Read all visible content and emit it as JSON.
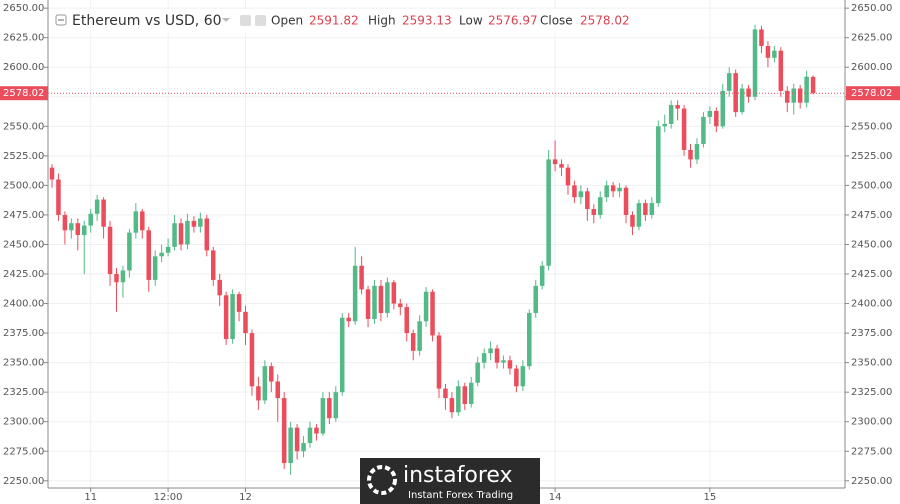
{
  "chart_data": {
    "type": "candlestick",
    "title": "Ethereum vs USD, 60",
    "ohlc_labels": {
      "open": "Open",
      "high": "High",
      "low": "Low",
      "close": "Close"
    },
    "watermark": {
      "brand": "instaforex",
      "tagline": "Instant Forex Trading"
    },
    "up_color": "#53b987",
    "down_color": "#eb4d5c",
    "grid": true,
    "xlim": [
      -0.62,
      122.95
    ],
    "xticks": [
      {
        "value": 6,
        "label": "11"
      },
      {
        "value": 18,
        "label": "12:00"
      },
      {
        "value": 30,
        "label": "12"
      },
      {
        "value": 78,
        "label": "14"
      },
      {
        "value": 102,
        "label": "15"
      }
    ],
    "ylim": [
      2243.9,
      2656.9
    ],
    "yticks": [
      {
        "value": 2250,
        "label": "2250.00"
      },
      {
        "value": 2275,
        "label": "2275.00"
      },
      {
        "value": 2300,
        "label": "2300.00"
      },
      {
        "value": 2325,
        "label": "2325.00"
      },
      {
        "value": 2350,
        "label": "2350.00"
      },
      {
        "value": 2375,
        "label": "2375.00"
      },
      {
        "value": 2400,
        "label": "2400.00"
      },
      {
        "value": 2425,
        "label": "2425.00"
      },
      {
        "value": 2450,
        "label": "2450.00"
      },
      {
        "value": 2475,
        "label": "2475.00"
      },
      {
        "value": 2500,
        "label": "2500.00"
      },
      {
        "value": 2525,
        "label": "2525.00"
      },
      {
        "value": 2550,
        "label": "2550.00"
      },
      {
        "value": 2575,
        "label": "2575.00"
      },
      {
        "value": 2600,
        "label": "2600.00"
      },
      {
        "value": 2625,
        "label": "2625.00"
      },
      {
        "value": 2650,
        "label": "2650.00"
      }
    ],
    "open": [
      2515,
      2505,
      2475,
      2462,
      2468,
      2458,
      2466,
      2476,
      2488,
      2465,
      2425,
      2418,
      2428,
      2460,
      2478,
      2462,
      2420,
      2440,
      2443,
      2448,
      2468,
      2450,
      2470,
      2465,
      2472,
      2445,
      2420,
      2407,
      2370,
      2408,
      2393,
      2375,
      2330,
      2318,
      2347,
      2334,
      2320,
      2265,
      2295,
      2275,
      2282,
      2295,
      2290,
      2320,
      2303,
      2325,
      2388,
      2385,
      2432,
      2412,
      2387,
      2415,
      2392,
      2418,
      2400,
      2397,
      2375,
      2360,
      2385,
      2410,
      2373,
      2328,
      2320,
      2308,
      2330,
      2315,
      2333,
      2350,
      2358,
      2362,
      2350,
      2352,
      2345,
      2330,
      2347,
      2392,
      2415,
      2432,
      2522,
      2518,
      2515,
      2500,
      2490,
      2495,
      2480,
      2475,
      2490,
      2500,
      2495,
      2498,
      2475,
      2465,
      2485,
      2475,
      2485,
      2550,
      2552,
      2568,
      2565,
      2530,
      2522,
      2535,
      2558,
      2563,
      2550,
      2580,
      2595,
      2562,
      2582,
      2575,
      2632,
      2618,
      2608,
      2614,
      2580,
      2570,
      2582,
      2570,
      2591.82
    ],
    "high": [
      2518,
      2510,
      2478,
      2472,
      2472,
      2470,
      2480,
      2492,
      2490,
      2470,
      2430,
      2432,
      2463,
      2485,
      2480,
      2465,
      2445,
      2450,
      2455,
      2475,
      2472,
      2476,
      2474,
      2477,
      2475,
      2448,
      2425,
      2410,
      2412,
      2410,
      2398,
      2378,
      2338,
      2352,
      2350,
      2340,
      2325,
      2300,
      2298,
      2288,
      2300,
      2298,
      2325,
      2325,
      2330,
      2392,
      2392,
      2448,
      2440,
      2415,
      2420,
      2420,
      2422,
      2420,
      2404,
      2400,
      2378,
      2390,
      2414,
      2412,
      2376,
      2332,
      2325,
      2335,
      2333,
      2338,
      2355,
      2362,
      2368,
      2365,
      2356,
      2356,
      2348,
      2352,
      2395,
      2420,
      2436,
      2530,
      2538,
      2522,
      2518,
      2504,
      2500,
      2498,
      2484,
      2495,
      2504,
      2503,
      2502,
      2500,
      2478,
      2488,
      2488,
      2490,
      2555,
      2560,
      2572,
      2572,
      2568,
      2535,
      2540,
      2562,
      2567,
      2566,
      2586,
      2600,
      2598,
      2586,
      2585,
      2636,
      2635,
      2622,
      2618,
      2617,
      2584,
      2586,
      2585,
      2597,
      2593.13
    ],
    "low": [
      2498,
      2470,
      2450,
      2455,
      2445,
      2425,
      2460,
      2470,
      2455,
      2415,
      2393,
      2405,
      2422,
      2455,
      2455,
      2410,
      2415,
      2435,
      2440,
      2445,
      2445,
      2446,
      2460,
      2460,
      2440,
      2415,
      2398,
      2365,
      2366,
      2385,
      2365,
      2322,
      2310,
      2315,
      2325,
      2300,
      2260,
      2255,
      2268,
      2270,
      2278,
      2284,
      2288,
      2298,
      2300,
      2322,
      2380,
      2382,
      2408,
      2380,
      2383,
      2385,
      2388,
      2395,
      2390,
      2368,
      2352,
      2356,
      2380,
      2368,
      2320,
      2310,
      2303,
      2305,
      2310,
      2312,
      2330,
      2345,
      2352,
      2345,
      2345,
      2340,
      2325,
      2326,
      2344,
      2388,
      2412,
      2428,
      2512,
      2508,
      2492,
      2485,
      2484,
      2470,
      2468,
      2472,
      2486,
      2490,
      2490,
      2468,
      2458,
      2462,
      2470,
      2472,
      2482,
      2545,
      2548,
      2555,
      2525,
      2515,
      2518,
      2532,
      2552,
      2545,
      2548,
      2575,
      2558,
      2560,
      2570,
      2572,
      2612,
      2600,
      2604,
      2575,
      2562,
      2560,
      2565,
      2566,
      2576.97
    ],
    "close": [
      2505,
      2475,
      2462,
      2468,
      2458,
      2466,
      2476,
      2488,
      2465,
      2425,
      2418,
      2428,
      2460,
      2478,
      2462,
      2420,
      2440,
      2443,
      2448,
      2468,
      2450,
      2470,
      2465,
      2472,
      2445,
      2420,
      2407,
      2370,
      2408,
      2393,
      2375,
      2330,
      2318,
      2347,
      2334,
      2320,
      2265,
      2295,
      2275,
      2282,
      2295,
      2290,
      2320,
      2303,
      2325,
      2388,
      2385,
      2432,
      2412,
      2387,
      2415,
      2392,
      2418,
      2400,
      2397,
      2375,
      2360,
      2385,
      2410,
      2373,
      2328,
      2320,
      2308,
      2330,
      2315,
      2333,
      2350,
      2358,
      2362,
      2350,
      2352,
      2345,
      2330,
      2347,
      2392,
      2415,
      2432,
      2522,
      2518,
      2515,
      2500,
      2490,
      2495,
      2480,
      2475,
      2490,
      2500,
      2495,
      2498,
      2475,
      2465,
      2485,
      2475,
      2485,
      2550,
      2552,
      2568,
      2565,
      2530,
      2522,
      2535,
      2558,
      2563,
      2550,
      2580,
      2595,
      2562,
      2582,
      2575,
      2632,
      2618,
      2608,
      2614,
      2580,
      2570,
      2582,
      2570,
      2592,
      2578.02
    ]
  }
}
